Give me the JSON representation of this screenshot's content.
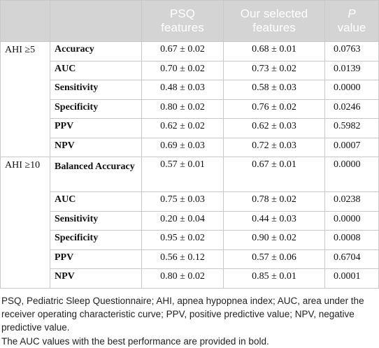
{
  "table": {
    "header": {
      "psq": "PSQ features",
      "ours": "Our selected features",
      "p_italic": "P",
      "p_rest": "value"
    },
    "groups": [
      {
        "label": "AHI ≥5",
        "rows": [
          [
            "Accuracy",
            "0.67 ± 0.02",
            "0.68 ± 0.01",
            "0.0763"
          ],
          [
            "AUC",
            "0.70 ± 0.02",
            "0.73 ± 0.02",
            "0.0139"
          ],
          [
            "Sensitivity",
            "0.48 ± 0.03",
            "0.58 ± 0.03",
            "0.0000"
          ],
          [
            "Specificity",
            "0.80 ± 0.02",
            "0.76 ± 0.02",
            "0.0246"
          ],
          [
            "PPV",
            "0.62 ± 0.02",
            "0.62 ± 0.03",
            "0.5982"
          ],
          [
            "NPV",
            "0.69 ± 0.03",
            "0.72 ± 0.03",
            "0.0007"
          ]
        ]
      },
      {
        "label": "AHI ≥10",
        "rows": [
          [
            "Balanced Accuracy",
            "0.57 ± 0.01",
            "0.67 ± 0.01",
            "0.0000"
          ],
          [
            "AUC",
            "0.75 ± 0.03",
            "0.78 ± 0.02",
            "0.0238"
          ],
          [
            "Sensitivity",
            "0.20 ± 0.04",
            "0.44 ± 0.03",
            "0.0000"
          ],
          [
            "Specificity",
            "0.95 ± 0.02",
            "0.90 ± 0.02",
            "0.0008"
          ],
          [
            "PPV",
            "0.56 ± 0.12",
            "0.57 ± 0.06",
            "0.6704"
          ],
          [
            "NPV",
            "0.80 ± 0.02",
            "0.85 ± 0.01",
            "0.0001"
          ]
        ]
      }
    ],
    "footnotes": [
      "PSQ, Pediatric Sleep Questionnaire; AHI, apnea hypopnea index; AUC, area under the receiver operating characteristic curve; PPV, positive predictive value; NPV, negative predictive value.",
      "The AUC values with the best performance are provided in bold."
    ]
  }
}
